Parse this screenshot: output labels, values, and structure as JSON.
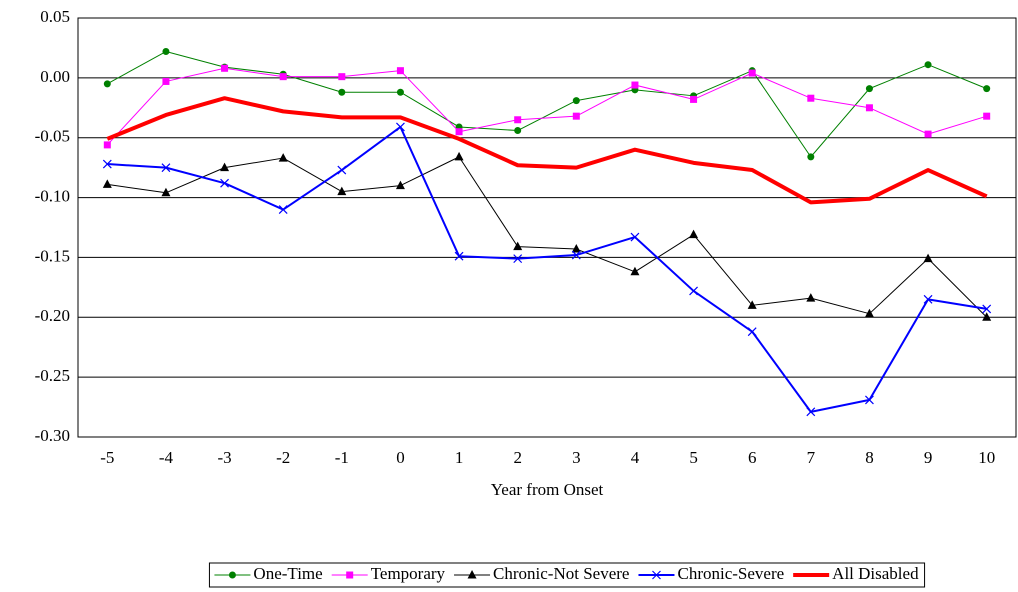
{
  "chart_data": {
    "type": "line",
    "x_label": "Year from Onset",
    "categories": [
      "-5",
      "-4",
      "-3",
      "-2",
      "-1",
      "0",
      "1",
      "2",
      "3",
      "4",
      "5",
      "6",
      "7",
      "8",
      "9",
      "10"
    ],
    "ylim": [
      -0.3,
      0.05
    ],
    "yticks": [
      0.05,
      {
        "value": 0,
        "label": "0.00"
      },
      -0.05,
      {
        "value": -0.1,
        "label": "-0.10"
      },
      -0.15,
      {
        "value": -0.2,
        "label": "-0.20"
      },
      -0.25,
      {
        "value": -0.3,
        "label": "-0.30"
      }
    ],
    "grid": true,
    "legend": "bottom",
    "series": [
      {
        "name": "One-Time",
        "color": "#008000",
        "marker": "circle",
        "line_width": 1,
        "values": [
          -0.005,
          0.022,
          0.009,
          0.003,
          -0.012,
          -0.012,
          -0.041,
          -0.044,
          -0.019,
          -0.01,
          -0.015,
          0.006,
          -0.066,
          -0.009,
          0.011,
          -0.009
        ]
      },
      {
        "name": "Temporary",
        "color": "#ff00ff",
        "marker": "square",
        "line_width": 1,
        "values": [
          -0.056,
          -0.003,
          0.008,
          0.001,
          0.001,
          0.006,
          -0.045,
          -0.035,
          -0.032,
          -0.006,
          -0.018,
          0.004,
          -0.017,
          -0.025,
          -0.047,
          -0.032
        ]
      },
      {
        "name": "Chronic-Not Severe",
        "color": "#000000",
        "marker": "triangle",
        "line_width": 1,
        "values": [
          -0.089,
          -0.096,
          -0.075,
          -0.067,
          -0.095,
          -0.09,
          -0.066,
          -0.141,
          -0.143,
          -0.162,
          -0.131,
          -0.19,
          -0.184,
          -0.197,
          -0.151,
          -0.2
        ]
      },
      {
        "name": "Chronic-Severe",
        "color": "#0000ff",
        "marker": "x",
        "line_width": 2,
        "values": [
          -0.072,
          -0.075,
          -0.088,
          -0.11,
          -0.077,
          -0.041,
          -0.149,
          -0.151,
          -0.148,
          -0.133,
          -0.178,
          -0.212,
          -0.279,
          -0.269,
          -0.185,
          -0.193
        ]
      },
      {
        "name": "All Disabled",
        "color": "#ff0000",
        "marker": "none",
        "line_width": 4,
        "values": [
          -0.051,
          -0.031,
          -0.017,
          -0.028,
          -0.033,
          -0.033,
          -0.051,
          -0.073,
          -0.075,
          -0.06,
          -0.071,
          -0.077,
          -0.104,
          -0.101,
          -0.077,
          -0.099
        ]
      }
    ]
  }
}
